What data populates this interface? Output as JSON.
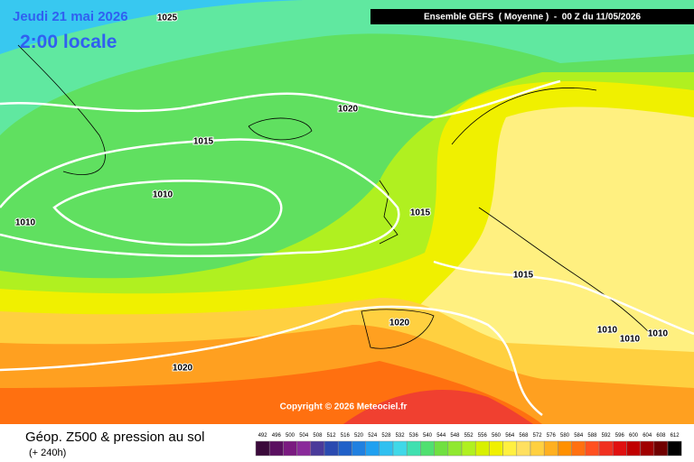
{
  "header": {
    "date": "Jeudi 21 mai 2026",
    "local_time": "2:00 locale",
    "run": "Ensemble GEFS  ( Moyenne )  -  00 Z du 11/05/2026"
  },
  "copyright": "Copyright © 2026 Meteociel.fr",
  "isobars": {
    "labels": [
      "1025",
      "1020",
      "1015",
      "1010",
      "1010",
      "1015",
      "1015",
      "1020",
      "1020",
      "1010",
      "1010",
      "1010"
    ]
  },
  "footer": {
    "title": "Géop. Z500 & pression au sol",
    "lead": "(+ 240h)"
  },
  "legend": {
    "levels": [
      492,
      496,
      500,
      504,
      508,
      512,
      516,
      520,
      524,
      528,
      532,
      536,
      540,
      544,
      548,
      552,
      556,
      560,
      564,
      568,
      572,
      576,
      580,
      584,
      588,
      592,
      596,
      600,
      604,
      608,
      612
    ],
    "colors": [
      "#3a0a3a",
      "#5a1060",
      "#7a1a80",
      "#8a2a9a",
      "#4a3a9a",
      "#2a4ab0",
      "#2060c8",
      "#2080e0",
      "#20a0f0",
      "#30c0f0",
      "#40d8e8",
      "#40e0b0",
      "#50e070",
      "#70e040",
      "#90e830",
      "#b0f020",
      "#d8f000",
      "#f0f000",
      "#fff040",
      "#ffe060",
      "#ffd040",
      "#ffb020",
      "#ff9000",
      "#ff7010",
      "#ff5020",
      "#f03020",
      "#e01010",
      "#c00000",
      "#a00000",
      "#700000",
      "#000000"
    ]
  }
}
